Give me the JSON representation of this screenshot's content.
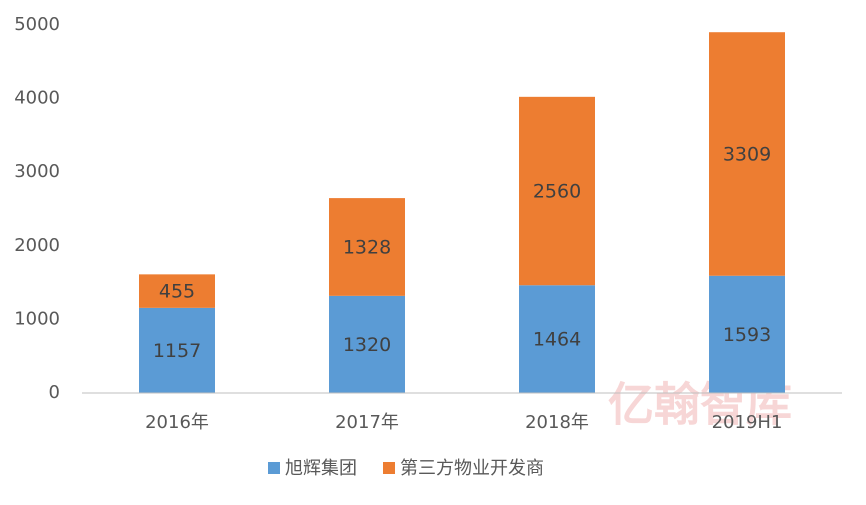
{
  "chart_data": {
    "type": "stacked_bar",
    "categories": [
      "2016年",
      "2017年",
      "2018年",
      "2019H1"
    ],
    "series": [
      {
        "name": "旭辉集团",
        "color": "#5b9bd5",
        "values": [
          1157,
          1320,
          1464,
          1593
        ]
      },
      {
        "name": "第三方物业开发商",
        "color": "#ed7d31",
        "values": [
          455,
          1328,
          2560,
          3309
        ]
      }
    ],
    "ylim": [
      0,
      5000
    ],
    "yticks": [
      0,
      1000,
      2000,
      3000,
      4000,
      5000
    ],
    "grid": false,
    "legend": "bottom",
    "watermark": "亿翰智库"
  }
}
